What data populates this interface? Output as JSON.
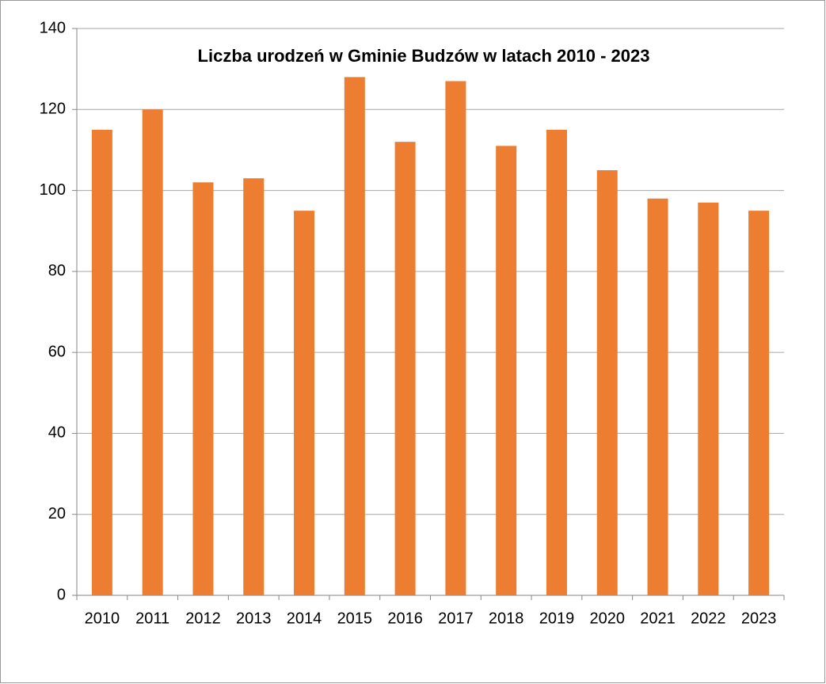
{
  "chart_data": {
    "type": "bar",
    "title": "Liczba urodzeń w Gminie Budzów w latach 2010 - 2023",
    "categories": [
      "2010",
      "2011",
      "2012",
      "2013",
      "2014",
      "2015",
      "2016",
      "2017",
      "2018",
      "2019",
      "2020",
      "2021",
      "2022",
      "2023"
    ],
    "values": [
      115,
      120,
      102,
      103,
      95,
      128,
      112,
      127,
      111,
      115,
      105,
      98,
      97,
      95
    ],
    "color": "#ed7d31",
    "ylim": [
      0,
      140
    ],
    "yticks": [
      0,
      20,
      40,
      60,
      80,
      100,
      120,
      140
    ],
    "grid": true
  }
}
